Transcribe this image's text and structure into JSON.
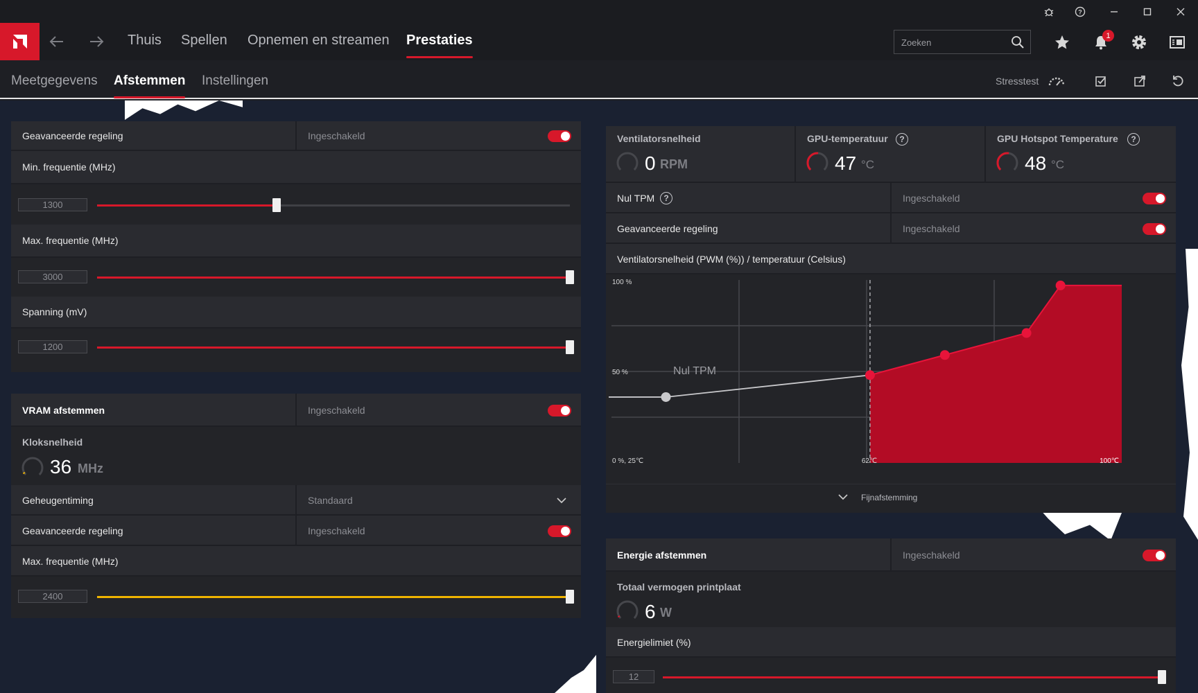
{
  "window": {
    "controls": [
      "bug-icon",
      "help-icon",
      "minimize-icon",
      "maximize-icon",
      "close-icon"
    ]
  },
  "nav": {
    "tabs": [
      {
        "label": "Thuis"
      },
      {
        "label": "Spellen"
      },
      {
        "label": "Opnemen en streamen"
      },
      {
        "label": "Prestaties"
      }
    ],
    "active_tab": "Prestaties",
    "search_placeholder": "Zoeken",
    "notification_count": "1"
  },
  "subnav": {
    "tabs": [
      {
        "label": "Meetgegevens"
      },
      {
        "label": "Afstemmen"
      },
      {
        "label": "Instellingen"
      }
    ],
    "active_tab": "Afstemmen",
    "stresstest_label": "Stresstest"
  },
  "gpu_tuning": {
    "advanced_label": "Geavanceerde regeling",
    "advanced_status": "Ingeschakeld",
    "min_freq_label": "Min. frequentie (MHz)",
    "min_freq_value": "1300",
    "min_freq_fraction": 0.38,
    "max_freq_label": "Max. frequentie (MHz)",
    "max_freq_value": "3000",
    "max_freq_fraction": 1.0,
    "voltage_label": "Spanning (mV)",
    "voltage_value": "1200",
    "voltage_fraction": 1.0
  },
  "vram": {
    "title": "VRAM afstemmen",
    "status": "Ingeschakeld",
    "clock_label": "Kloksnelheid",
    "clock_value": "36",
    "clock_unit": "MHz",
    "timing_label": "Geheugentiming",
    "timing_value": "Standaard",
    "advanced_label": "Geavanceerde regeling",
    "advanced_status": "Ingeschakeld",
    "max_freq_label": "Max. frequentie (MHz)",
    "max_freq_value": "2400",
    "max_freq_fraction": 1.0,
    "accent": "#f0b400"
  },
  "fan": {
    "speed_label": "Ventilatorsnelheid",
    "speed_value": "0",
    "speed_unit": "RPM",
    "gpu_temp_label": "GPU-temperatuur",
    "gpu_temp_value": "47",
    "gpu_temp_unit": "°C",
    "hotspot_label": "GPU Hotspot Temperature",
    "hotspot_value": "48",
    "hotspot_unit": "°C",
    "zero_rpm_label": "Nul TPM",
    "zero_rpm_status": "Ingeschakeld",
    "advanced_label": "Geavanceerde regeling",
    "advanced_status": "Ingeschakeld",
    "curve_title": "Ventilatorsnelheid (PWM (%)) / temperatuur (Celsius)",
    "fine_tune_label": "Fijnafstemming"
  },
  "chart_data": {
    "type": "area",
    "title": "Ventilatorsnelheid (PWM (%)) / temperatuur (Celsius)",
    "y_tick_labels": [
      "100 %",
      "50 %",
      "0 %, 25℃"
    ],
    "x_tick_labels": [
      "62℃",
      "100℃"
    ],
    "annotation": "Nul TPM",
    "xlim": [
      25,
      100
    ],
    "ylim": [
      0,
      100
    ],
    "zero_rpm_point": {
      "x": 33,
      "y": 36
    },
    "points": [
      {
        "x": 63,
        "y": 48
      },
      {
        "x": 74,
        "y": 59
      },
      {
        "x": 86,
        "y": 71
      },
      {
        "x": 91,
        "y": 97
      }
    ],
    "zero_rpm_cutoff_x": 63,
    "accent": "#d7182a"
  },
  "power": {
    "title": "Energie afstemmen",
    "status": "Ingeschakeld",
    "board_power_label": "Totaal vermogen printplaat",
    "board_power_value": "6",
    "board_power_unit": "W",
    "limit_label": "Energielimiet (%)",
    "limit_value": "12",
    "limit_fraction": 1.0
  },
  "accent": "#d7182a"
}
